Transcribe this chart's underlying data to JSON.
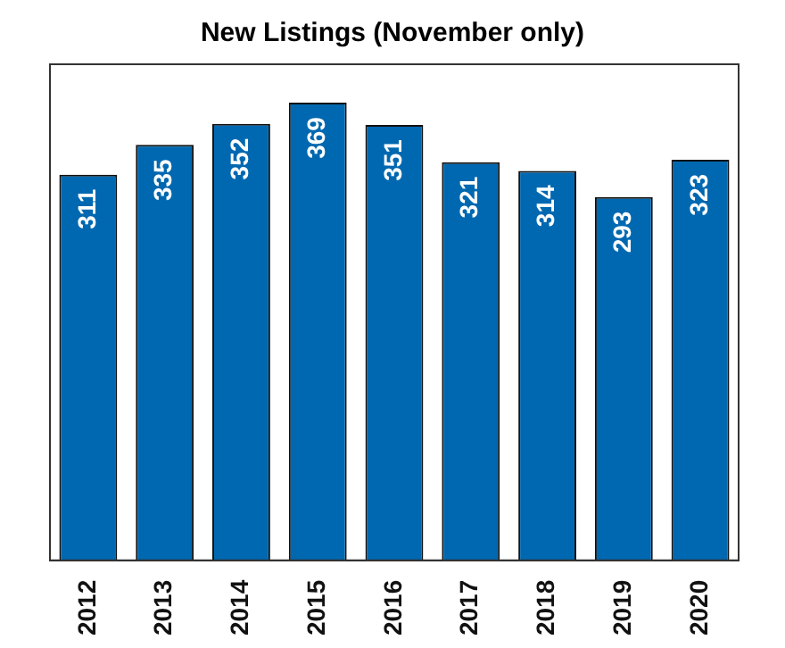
{
  "chart_data": {
    "type": "bar",
    "title": "New Listings (November only)",
    "categories": [
      "2012",
      "2013",
      "2014",
      "2015",
      "2016",
      "2017",
      "2018",
      "2019",
      "2020"
    ],
    "values": [
      311,
      335,
      352,
      369,
      351,
      321,
      314,
      293,
      323
    ],
    "color": "#0068b0",
    "data_labels": true,
    "grid": false,
    "legend": false,
    "tick_labels": "x"
  }
}
